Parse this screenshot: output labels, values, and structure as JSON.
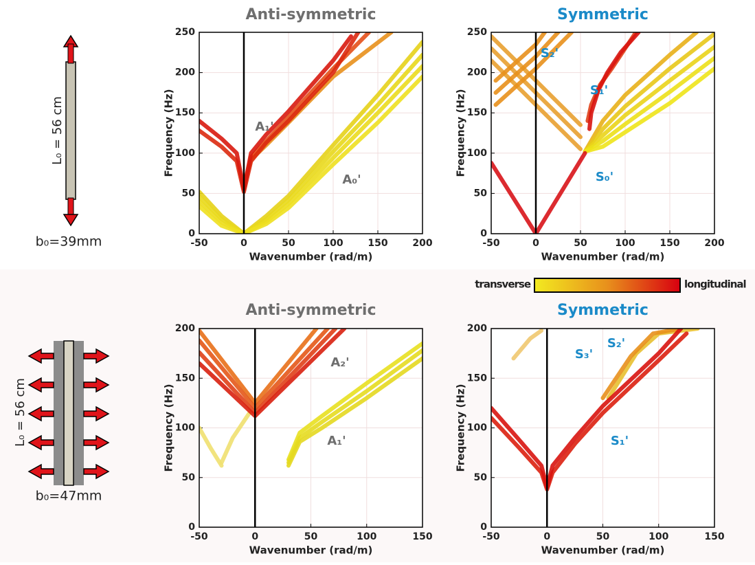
{
  "chart_data": [
    {
      "type": "line",
      "title": "Anti-symmetric",
      "title_color": "#6e6e6e",
      "xlabel": "Wavenumber (rad/m)",
      "ylabel": "Frequency (Hz)",
      "xlim": [
        -50,
        200
      ],
      "ylim": [
        0,
        250
      ],
      "xticks": [
        -50,
        0,
        50,
        100,
        150,
        200
      ],
      "yticks": [
        0,
        50,
        100,
        150,
        200,
        250
      ],
      "grid": true,
      "annotations": [
        "A₁'",
        "A₀'"
      ],
      "series": [
        {
          "color": "#e6d21a",
          "x": [
            -50,
            -25,
            0,
            25,
            50,
            100,
            150,
            200
          ],
          "values": [
            52,
            22,
            0,
            22,
            47,
            110,
            172,
            238
          ]
        },
        {
          "color": "#e8d81c",
          "x": [
            -50,
            -25,
            0,
            25,
            50,
            100,
            150,
            200
          ],
          "values": [
            46,
            18,
            0,
            18,
            42,
            102,
            160,
            222
          ]
        },
        {
          "color": "#ebdc1e",
          "x": [
            -50,
            -25,
            0,
            25,
            50,
            100,
            150,
            200
          ],
          "values": [
            40,
            14,
            0,
            15,
            37,
            94,
            150,
            208
          ]
        },
        {
          "color": "#eee020",
          "x": [
            -50,
            -25,
            0,
            25,
            50,
            100,
            150,
            200
          ],
          "values": [
            34,
            10,
            0,
            12,
            32,
            86,
            138,
            195
          ]
        },
        {
          "color": "#e8901c",
          "x": [
            0,
            8,
            25,
            50,
            100,
            165
          ],
          "values": [
            60,
            92,
            110,
            138,
            195,
            250
          ]
        },
        {
          "color": "#e4501a",
          "x": [
            0,
            8,
            25,
            50,
            100,
            140
          ],
          "values": [
            58,
            95,
            115,
            145,
            205,
            250
          ]
        },
        {
          "color": "#dc2a10",
          "x": [
            -50,
            -25,
            -8,
            0,
            8,
            25,
            50,
            100,
            128
          ],
          "values": [
            128,
            108,
            90,
            52,
            90,
            113,
            140,
            200,
            250
          ]
        },
        {
          "color": "#d81a10",
          "x": [
            -50,
            -25,
            -8,
            0,
            8,
            25,
            50,
            100,
            120
          ],
          "values": [
            140,
            118,
            100,
            55,
            100,
            123,
            152,
            215,
            245
          ]
        }
      ]
    },
    {
      "type": "line",
      "title": "Symmetric",
      "title_color": "#1a8ac8",
      "xlabel": "Wavenumber (rad/m)",
      "ylabel": "Frequency (Hz)",
      "xlim": [
        -50,
        200
      ],
      "ylim": [
        0,
        250
      ],
      "xticks": [
        -50,
        0,
        50,
        100,
        150,
        200
      ],
      "yticks": [
        0,
        50,
        100,
        150,
        200,
        250
      ],
      "grid": true,
      "annotations": [
        "S₂'",
        "S₁'",
        "S₀'"
      ],
      "series": [
        {
          "color": "#e8a030",
          "x": [
            -50,
            0,
            50
          ],
          "values": [
            245,
            190,
            135
          ]
        },
        {
          "color": "#e8a030",
          "x": [
            -50,
            0,
            50
          ],
          "values": [
            230,
            175,
            120
          ]
        },
        {
          "color": "#e8a030",
          "x": [
            -50,
            0,
            50
          ],
          "values": [
            215,
            160,
            105
          ]
        },
        {
          "color": "#e8901c",
          "x": [
            -45,
            0,
            40
          ],
          "values": [
            160,
            205,
            250
          ]
        },
        {
          "color": "#e8901c",
          "x": [
            -45,
            0,
            25
          ],
          "values": [
            175,
            220,
            250
          ]
        },
        {
          "color": "#e8901c",
          "x": [
            -45,
            0,
            10
          ],
          "values": [
            190,
            235,
            250
          ]
        },
        {
          "color": "#e8b01a",
          "x": [
            55,
            75,
            100,
            150,
            180
          ],
          "values": [
            102,
            140,
            172,
            222,
            250
          ]
        },
        {
          "color": "#e8c81a",
          "x": [
            55,
            75,
            100,
            150,
            200
          ],
          "values": [
            102,
            130,
            158,
            205,
            248
          ]
        },
        {
          "color": "#ead41a",
          "x": [
            55,
            75,
            100,
            150,
            200
          ],
          "values": [
            102,
            122,
            147,
            190,
            232
          ]
        },
        {
          "color": "#ece01a",
          "x": [
            55,
            75,
            100,
            150,
            200
          ],
          "values": [
            102,
            115,
            136,
            176,
            218
          ]
        },
        {
          "color": "#eee41a",
          "x": [
            55,
            75,
            100,
            150,
            200
          ],
          "values": [
            102,
            108,
            126,
            162,
            205
          ]
        },
        {
          "color": "#d8141a",
          "x": [
            -50,
            0,
            55
          ],
          "values": [
            88,
            0,
            100
          ]
        },
        {
          "color": "#e04018",
          "x": [
            58,
            62,
            72,
            85,
            100,
            112
          ],
          "values": [
            140,
            160,
            185,
            205,
            230,
            250
          ]
        },
        {
          "color": "#d81410",
          "x": [
            60,
            62,
            70,
            80,
            95,
            115
          ],
          "values": [
            130,
            150,
            178,
            200,
            225,
            250
          ]
        }
      ]
    },
    {
      "type": "line",
      "title": "Anti-symmetric",
      "title_color": "#6e6e6e",
      "xlabel": "Wavenumber (rad/m)",
      "ylabel": "Frequency (Hz)",
      "xlim": [
        -50,
        150
      ],
      "ylim": [
        0,
        200
      ],
      "xticks": [
        -50,
        0,
        50,
        100,
        150
      ],
      "yticks": [
        0,
        50,
        100,
        150,
        200
      ],
      "grid": true,
      "annotations": [
        "A₂'",
        "A₁'"
      ],
      "series": [
        {
          "color": "#f0e070",
          "x": [
            -50,
            -40,
            -30
          ],
          "values": [
            100,
            80,
            62
          ]
        },
        {
          "color": "#f0e070",
          "x": [
            -30,
            -20,
            -5
          ],
          "values": [
            65,
            90,
            115
          ]
        },
        {
          "color": "#e8e020",
          "x": [
            30,
            40,
            60,
            100,
            150
          ],
          "values": [
            68,
            95,
            112,
            145,
            185
          ]
        },
        {
          "color": "#e6dc20",
          "x": [
            30,
            40,
            60,
            100,
            150
          ],
          "values": [
            65,
            90,
            106,
            137,
            178
          ]
        },
        {
          "color": "#e4d820",
          "x": [
            30,
            40,
            60,
            100,
            150
          ],
          "values": [
            62,
            86,
            100,
            130,
            170
          ]
        },
        {
          "color": "#e8701a",
          "x": [
            -50,
            0,
            55
          ],
          "values": [
            198,
            125,
            200
          ]
        },
        {
          "color": "#e45818",
          "x": [
            -50,
            0,
            65
          ],
          "values": [
            188,
            120,
            200
          ]
        },
        {
          "color": "#e04018",
          "x": [
            -50,
            0,
            72
          ],
          "values": [
            176,
            115,
            200
          ]
        },
        {
          "color": "#d82010",
          "x": [
            -50,
            0,
            80
          ],
          "values": [
            165,
            112,
            200
          ]
        }
      ]
    },
    {
      "type": "line",
      "title": "Symmetric",
      "title_color": "#1a8ac8",
      "xlabel": "Wavenumber (rad/m)",
      "ylabel": "Frequency (Hz)",
      "xlim": [
        -50,
        150
      ],
      "ylim": [
        0,
        200
      ],
      "xticks": [
        -50,
        0,
        50,
        100,
        150
      ],
      "yticks": [
        0,
        50,
        100,
        150,
        200
      ],
      "grid": true,
      "annotations": [
        "S₃'",
        "S₂'",
        "S₁'"
      ],
      "series": [
        {
          "color": "#f0c870",
          "x": [
            -30,
            -15,
            -5
          ],
          "values": [
            170,
            190,
            198
          ]
        },
        {
          "color": "#e8c030",
          "x": [
            55,
            80,
            100,
            135
          ],
          "values": [
            130,
            175,
            195,
            200
          ]
        },
        {
          "color": "#e8901c",
          "x": [
            50,
            75,
            95,
            120
          ],
          "values": [
            130,
            172,
            195,
            200
          ]
        },
        {
          "color": "#dc2010",
          "x": [
            -50,
            -25,
            -5,
            0,
            5,
            25,
            50,
            100,
            125
          ],
          "values": [
            110,
            80,
            55,
            38,
            55,
            84,
            115,
            168,
            195
          ]
        },
        {
          "color": "#d81410",
          "x": [
            -50,
            -25,
            -5,
            0,
            5,
            25,
            50,
            100,
            120
          ],
          "values": [
            120,
            88,
            62,
            40,
            62,
            90,
            122,
            175,
            200
          ]
        }
      ]
    }
  ],
  "diagrams": [
    {
      "length_label": "L₀ = 56 cm",
      "width_label": "b₀=39mm"
    },
    {
      "length_label": "L₀ = 56 cm",
      "width_label": "b₀=47mm"
    }
  ],
  "colorbar": {
    "low_label": "transverse",
    "high_label": "longitudinal",
    "colors": [
      "#f2ea20",
      "#e8901c",
      "#d80010"
    ]
  }
}
